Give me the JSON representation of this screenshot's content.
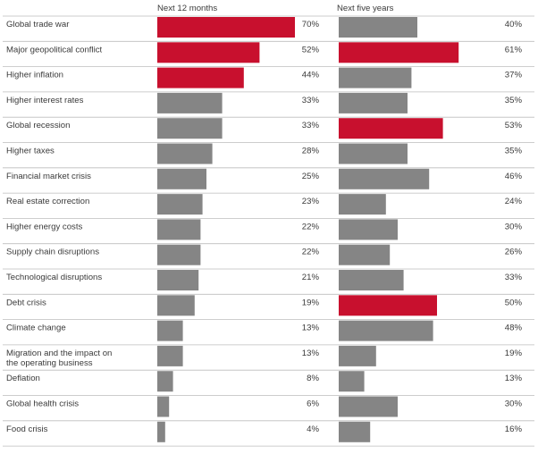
{
  "chart_data": {
    "type": "bar",
    "orientation": "horizontal",
    "categories": [
      "Global trade war",
      "Major geopolitical conflict",
      "Higher inflation",
      "Higher interest rates",
      "Global recession",
      "Higher taxes",
      "Financial market crisis",
      "Real estate correction",
      "Higher energy costs",
      "Supply chain disruptions",
      "Technological disruptions",
      "Debt crisis",
      "Climate change",
      "Migration and the impact on the operating business",
      "Deflation",
      "Global health crisis",
      "Food crisis"
    ],
    "series": [
      {
        "name": "Next 12 months",
        "values": [
          70,
          52,
          44,
          33,
          33,
          28,
          25,
          23,
          22,
          22,
          21,
          19,
          13,
          13,
          8,
          6,
          4
        ],
        "labels": [
          "70%",
          "52%",
          "44%",
          "33%",
          "33%",
          "28%",
          "25%",
          "23%",
          "22%",
          "22%",
          "21%",
          "19%",
          "13%",
          "13%",
          "8%",
          "6%",
          "4%"
        ],
        "highlighted": [
          true,
          true,
          true,
          false,
          false,
          false,
          false,
          false,
          false,
          false,
          false,
          false,
          false,
          false,
          false,
          false,
          false
        ]
      },
      {
        "name": "Next five years",
        "values": [
          40,
          61,
          37,
          35,
          53,
          35,
          46,
          24,
          30,
          26,
          33,
          50,
          48,
          19,
          13,
          30,
          16
        ],
        "labels": [
          "40%",
          "61%",
          "37%",
          "35%",
          "53%",
          "35%",
          "46%",
          "24%",
          "30%",
          "26%",
          "33%",
          "50%",
          "48%",
          "19%",
          "13%",
          "30%",
          "16%"
        ],
        "highlighted": [
          false,
          true,
          false,
          false,
          true,
          false,
          false,
          false,
          false,
          false,
          false,
          true,
          false,
          false,
          false,
          false,
          false
        ]
      }
    ],
    "xlim": [
      0,
      100
    ],
    "grid": false,
    "legend": "none",
    "colors": {
      "highlight": "#c8102e",
      "default": "#858585",
      "separator": "#bdbdbd",
      "text": "#3a3a3a"
    }
  }
}
